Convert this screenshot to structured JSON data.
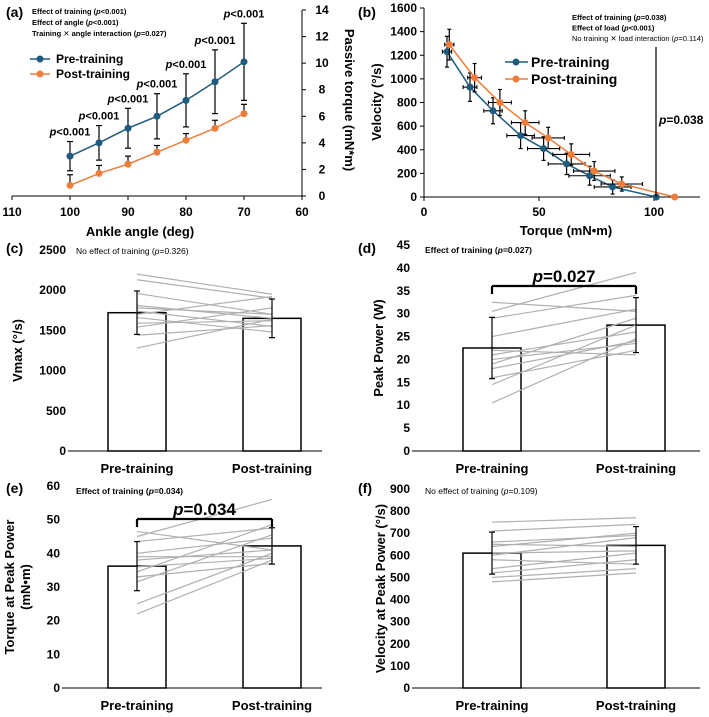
{
  "colors": {
    "pre": "#1f5b7f",
    "post": "#ee7d3a",
    "individual": "#b0b0b0",
    "bar_fill": "#ffffff",
    "axis": "#000000"
  },
  "chart_data": [
    {
      "id": "a",
      "panel_label": "(a)",
      "type": "line",
      "xlabel": "Ankle angle (deg)",
      "ylabel": "Passive torque (mN*m)",
      "x": [
        100,
        95,
        90,
        85,
        80,
        75,
        70
      ],
      "xticks": [
        "110",
        "100",
        "90",
        "80",
        "70",
        "60"
      ],
      "xlim": [
        110,
        60
      ],
      "yticks": [
        "0",
        "2",
        "4",
        "6",
        "8",
        "10",
        "12",
        "14"
      ],
      "ylim": [
        0,
        14
      ],
      "stats": [
        {
          "pre": "Effect of training (",
          "p": "p",
          "post": "<0.001)"
        },
        {
          "pre": "Effect of angle (",
          "p": "p",
          "post": "<0.001)"
        },
        {
          "pre": "Training ✕ angle interaction (",
          "p": "p",
          "post": "=0.027)"
        }
      ],
      "annotations": [
        "p<0.001",
        "p<0.001",
        "p<0.001",
        "p<0.001",
        "p<0.001",
        "p<0.001",
        "p<0.001"
      ],
      "series": [
        {
          "name": "Pre-training",
          "values": [
            3.0,
            4.0,
            5.1,
            6.0,
            7.2,
            8.6,
            10.1
          ],
          "errors": [
            1.1,
            1.3,
            1.5,
            1.7,
            2.0,
            2.4,
            2.9
          ]
        },
        {
          "name": "Post-training",
          "values": [
            0.8,
            1.7,
            2.4,
            3.3,
            4.2,
            5.1,
            6.2
          ],
          "errors": [
            0.8,
            0.6,
            0.6,
            0.5,
            0.5,
            0.6,
            0.7
          ]
        }
      ]
    },
    {
      "id": "b",
      "panel_label": "(b)",
      "type": "line",
      "xlabel": "Torque (mN•m)",
      "ylabel": "Velocity (°/s)",
      "xticks": [
        "0",
        "50",
        "100"
      ],
      "xlim": [
        0,
        120
      ],
      "yticks": [
        "0",
        "200",
        "400",
        "600",
        "800",
        "1000",
        "1200",
        "1400",
        "1600"
      ],
      "ylim": [
        0,
        1600
      ],
      "stats": [
        {
          "pre": "Effect of training (",
          "p": "p",
          "post": "=0.038)",
          "bold": true
        },
        {
          "pre": "Effect of load (",
          "p": "p",
          "post": "<0.001)",
          "bold": true
        },
        {
          "pre": "No training ✕ load interaction (",
          "p": "p",
          "post": "=0.114)",
          "bold": false
        }
      ],
      "annotation": "p=0.038",
      "series": [
        {
          "name": "Pre-training",
          "x": [
            10,
            20,
            30,
            42,
            52,
            62,
            72,
            82,
            101
          ],
          "y": [
            1230,
            930,
            730,
            520,
            410,
            280,
            180,
            85,
            0
          ],
          "xerr": [
            2,
            3,
            4,
            6,
            7,
            8,
            9,
            8,
            0
          ],
          "yerr": [
            130,
            120,
            110,
            110,
            100,
            90,
            80,
            60,
            0
          ]
        },
        {
          "name": "Post-training",
          "x": [
            11,
            22,
            33,
            44,
            54,
            64,
            74,
            86,
            109
          ],
          "y": [
            1290,
            1010,
            800,
            630,
            500,
            360,
            220,
            110,
            0
          ],
          "xerr": [
            2,
            3,
            5,
            6,
            7,
            8,
            9,
            9,
            0
          ],
          "yerr": [
            130,
            120,
            110,
            100,
            90,
            90,
            80,
            60,
            0
          ]
        }
      ]
    },
    {
      "id": "c",
      "panel_label": "(c)",
      "type": "bar",
      "ylabel": "Vmax (°/s)",
      "categories": [
        "Pre-training",
        "Post-training"
      ],
      "values": [
        1720,
        1650
      ],
      "errors": [
        270,
        240
      ],
      "yticks": [
        "0",
        "500",
        "1000",
        "1500",
        "2000",
        "2500"
      ],
      "ylim": [
        0,
        2500
      ],
      "stats": {
        "pre": "No effect of training (",
        "p": "p",
        "post": "=0.326)",
        "bold": false
      },
      "individual": [
        [
          2200,
          1950
        ],
        [
          2130,
          1900
        ],
        [
          1960,
          1700
        ],
        [
          1810,
          1650
        ],
        [
          1780,
          1700
        ],
        [
          1740,
          1550
        ],
        [
          1700,
          1920
        ],
        [
          1660,
          1480
        ],
        [
          1590,
          1620
        ],
        [
          1540,
          1780
        ],
        [
          1440,
          1560
        ],
        [
          1280,
          1640
        ]
      ]
    },
    {
      "id": "d",
      "panel_label": "(d)",
      "type": "bar",
      "ylabel": "Peak Power (W)",
      "categories": [
        "Pre-training",
        "Post-training"
      ],
      "values": [
        22.5,
        27.5
      ],
      "errors": [
        6.7,
        6.0
      ],
      "yticks": [
        "0",
        "5",
        "10",
        "15",
        "20",
        "25",
        "30",
        "35",
        "40",
        "45"
      ],
      "ylim": [
        0,
        45
      ],
      "stats": {
        "pre": "Effect of training (",
        "p": "p",
        "post": "=0.027)",
        "bold": true
      },
      "annotation": "p=0.027",
      "individual": [
        [
          32.5,
          30.5
        ],
        [
          30.5,
          39.0
        ],
        [
          29.0,
          34.0
        ],
        [
          25.0,
          31.0
        ],
        [
          22.0,
          21.0
        ],
        [
          21.0,
          26.0
        ],
        [
          20.0,
          23.5
        ],
        [
          19.0,
          29.0
        ],
        [
          18.0,
          24.0
        ],
        [
          16.0,
          22.0
        ],
        [
          14.5,
          27.5
        ],
        [
          10.5,
          24.5
        ]
      ]
    },
    {
      "id": "e",
      "panel_label": "(e)",
      "type": "bar",
      "ylabel": "Torque at Peak Power (mN•m)",
      "categories": [
        "Pre-training",
        "Post-training"
      ],
      "values": [
        36.2,
        42.2
      ],
      "errors": [
        7.3,
        5.4
      ],
      "yticks": [
        "0",
        "10",
        "20",
        "30",
        "40",
        "50",
        "60"
      ],
      "ylim": [
        0,
        60
      ],
      "stats": {
        "pre": "Effect of training (",
        "p": "p",
        "post": "=0.034)",
        "bold": true
      },
      "annotation": "p=0.034",
      "individual": [
        [
          46.5,
          41.0
        ],
        [
          45.0,
          56.0
        ],
        [
          43.5,
          47.5
        ],
        [
          40.0,
          44.5
        ],
        [
          39.0,
          39.0
        ],
        [
          38.0,
          41.0
        ],
        [
          36.0,
          38.5
        ],
        [
          34.5,
          48.5
        ],
        [
          33.0,
          37.0
        ],
        [
          31.5,
          45.5
        ],
        [
          25.0,
          40.0
        ],
        [
          22.0,
          38.0
        ]
      ]
    },
    {
      "id": "f",
      "panel_label": "(f)",
      "type": "bar",
      "ylabel": "Velocity at Peak Power (°/s)",
      "categories": [
        "Pre-training",
        "Post-training"
      ],
      "values": [
        610,
        645
      ],
      "errors": [
        95,
        85
      ],
      "yticks": [
        "0",
        "100",
        "200",
        "300",
        "400",
        "500",
        "600",
        "700",
        "800",
        "900"
      ],
      "ylim": [
        0,
        900
      ],
      "stats": {
        "pre": "No effect of training (",
        "p": "p",
        "post": "=0.109)",
        "bold": false
      },
      "individual": [
        [
          750,
          770
        ],
        [
          710,
          740
        ],
        [
          660,
          690
        ],
        [
          650,
          640
        ],
        [
          640,
          700
        ],
        [
          610,
          620
        ],
        [
          600,
          680
        ],
        [
          580,
          560
        ],
        [
          540,
          610
        ],
        [
          520,
          580
        ],
        [
          500,
          540
        ],
        [
          480,
          520
        ]
      ]
    }
  ]
}
